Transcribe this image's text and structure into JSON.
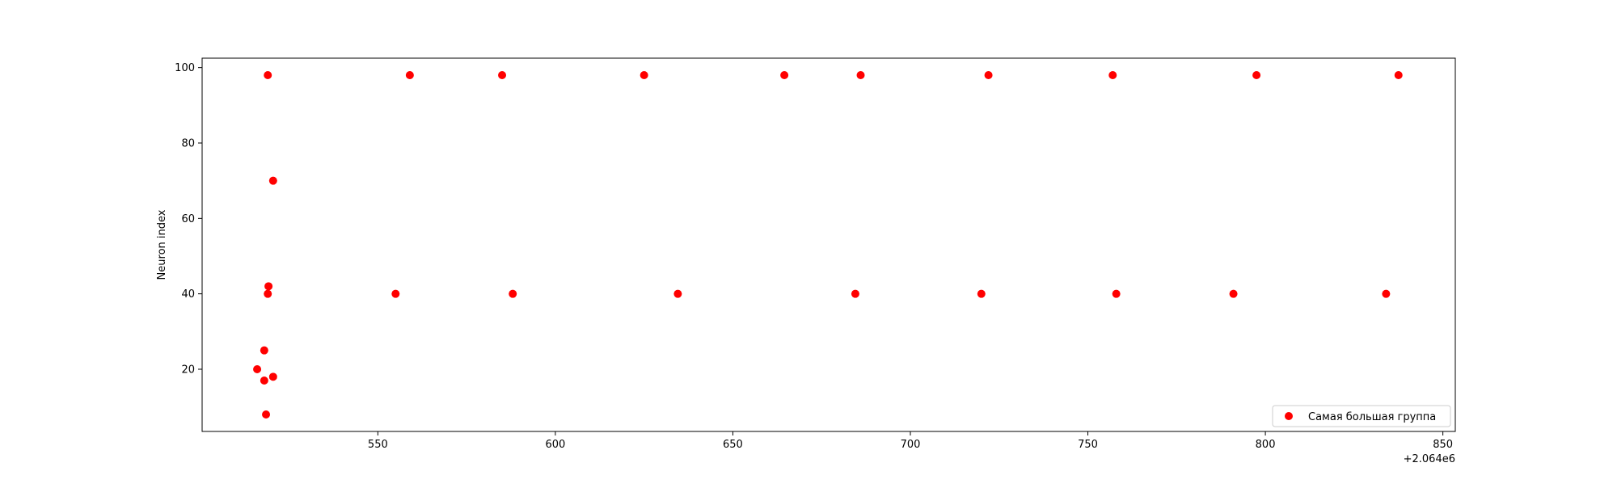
{
  "chart_data": {
    "type": "scatter",
    "title": "",
    "xlabel": "",
    "ylabel": "Neuron index",
    "x_offset_label": "+2.064e6",
    "xlim": [
      500.5,
      853.5
    ],
    "ylim": [
      3.5,
      102.5
    ],
    "xticks": [
      550,
      600,
      650,
      700,
      750,
      800,
      850
    ],
    "yticks": [
      20,
      40,
      60,
      80,
      100
    ],
    "grid": false,
    "legend_position": "lower right",
    "series": [
      {
        "name": "Самая большая группа",
        "color": "#ff0000",
        "points": [
          {
            "x": 516,
            "y": 20
          },
          {
            "x": 518,
            "y": 25
          },
          {
            "x": 518,
            "y": 17
          },
          {
            "x": 518.5,
            "y": 8
          },
          {
            "x": 519,
            "y": 98
          },
          {
            "x": 519,
            "y": 40
          },
          {
            "x": 519.2,
            "y": 42
          },
          {
            "x": 520.5,
            "y": 70
          },
          {
            "x": 520.5,
            "y": 18
          },
          {
            "x": 555,
            "y": 40
          },
          {
            "x": 559,
            "y": 98
          },
          {
            "x": 585,
            "y": 98
          },
          {
            "x": 588,
            "y": 40
          },
          {
            "x": 625,
            "y": 98
          },
          {
            "x": 634.5,
            "y": 40
          },
          {
            "x": 664.5,
            "y": 98
          },
          {
            "x": 684.5,
            "y": 40
          },
          {
            "x": 686,
            "y": 98
          },
          {
            "x": 720,
            "y": 40
          },
          {
            "x": 722,
            "y": 98
          },
          {
            "x": 757,
            "y": 98
          },
          {
            "x": 758,
            "y": 40
          },
          {
            "x": 791,
            "y": 40
          },
          {
            "x": 797.5,
            "y": 98
          },
          {
            "x": 834,
            "y": 40
          },
          {
            "x": 837.5,
            "y": 98
          }
        ]
      }
    ]
  }
}
